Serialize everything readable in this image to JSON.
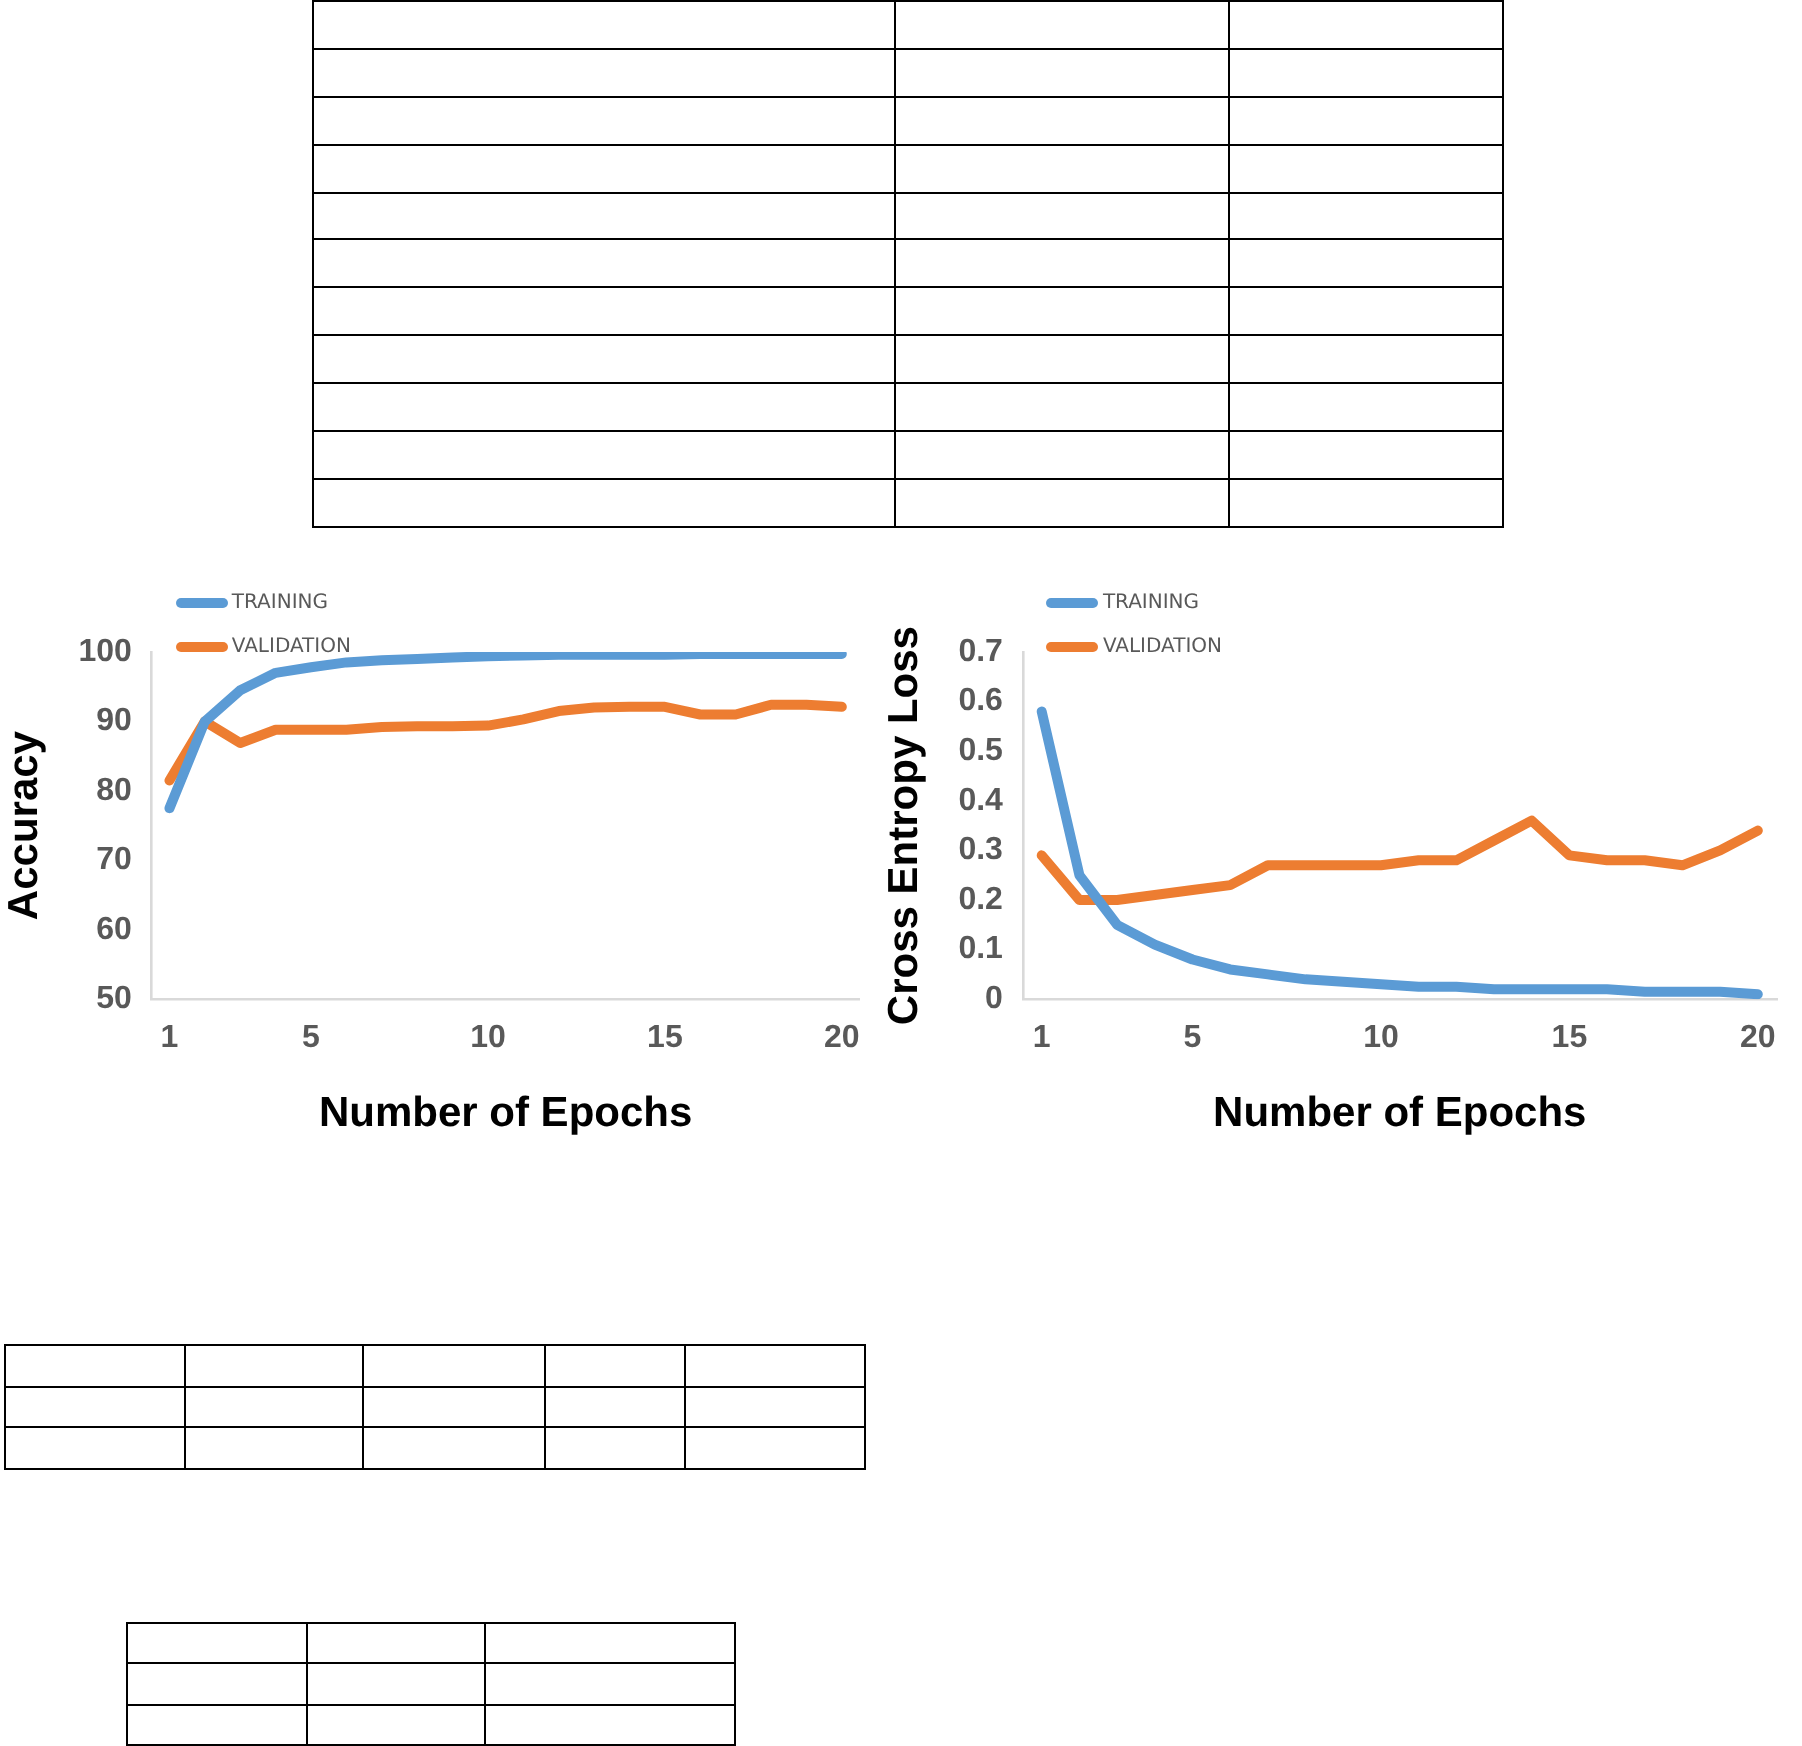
{
  "chart_data": [
    {
      "type": "line",
      "xlabel": "Number of Epochs",
      "ylabel": "Accuracy",
      "x": [
        1,
        2,
        3,
        4,
        5,
        6,
        7,
        8,
        9,
        10,
        11,
        12,
        13,
        14,
        15,
        16,
        17,
        18,
        19,
        20
      ],
      "xlim": [
        0.5,
        20.5
      ],
      "xticks": [
        1,
        5,
        10,
        15,
        20
      ],
      "ylim": [
        50,
        100
      ],
      "yticks": [
        50,
        60,
        70,
        80,
        90,
        100
      ],
      "grid": false,
      "legend": "top left",
      "marker": "none",
      "line_style": "solid",
      "series": [
        {
          "name": "TRAINING",
          "color": "#5b9bd5",
          "values": [
            77.5,
            90,
            94.5,
            97,
            97.8,
            98.5,
            98.8,
            99,
            99.2,
            99.4,
            99.5,
            99.6,
            99.6,
            99.6,
            99.6,
            99.7,
            99.7,
            99.7,
            99.7,
            99.7
          ]
        },
        {
          "name": "VALIDATION",
          "color": "#ed7d31",
          "values": [
            81.5,
            90,
            86.9,
            88.8,
            88.8,
            88.8,
            89.2,
            89.3,
            89.3,
            89.4,
            90.3,
            91.5,
            92,
            92.1,
            92.1,
            91,
            91,
            92.4,
            92.4,
            92.1
          ]
        }
      ]
    },
    {
      "type": "line",
      "xlabel": "Number of Epochs",
      "ylabel": "Cross Entropy Loss",
      "x": [
        1,
        2,
        3,
        4,
        5,
        6,
        7,
        8,
        9,
        10,
        11,
        12,
        13,
        14,
        15,
        16,
        17,
        18,
        19,
        20
      ],
      "xlim": [
        0.5,
        20.5
      ],
      "xticks": [
        1,
        5,
        10,
        15,
        20
      ],
      "ylim": [
        0,
        0.7
      ],
      "yticks": [
        0,
        0.1,
        0.2,
        0.3,
        0.4,
        0.5,
        0.6,
        0.7
      ],
      "grid": false,
      "legend": "top left",
      "marker": "none",
      "line_style": "solid",
      "series": [
        {
          "name": "TRAINING",
          "color": "#5b9bd5",
          "values": [
            0.58,
            0.25,
            0.15,
            0.11,
            0.08,
            0.06,
            0.05,
            0.04,
            0.035,
            0.03,
            0.025,
            0.025,
            0.02,
            0.02,
            0.02,
            0.02,
            0.015,
            0.015,
            0.015,
            0.01
          ]
        },
        {
          "name": "VALIDATION",
          "color": "#ed7d31",
          "values": [
            0.29,
            0.2,
            0.2,
            0.21,
            0.22,
            0.23,
            0.27,
            0.27,
            0.27,
            0.27,
            0.28,
            0.28,
            0.32,
            0.36,
            0.29,
            0.28,
            0.28,
            0.27,
            0.3,
            0.34
          ]
        }
      ]
    }
  ]
}
